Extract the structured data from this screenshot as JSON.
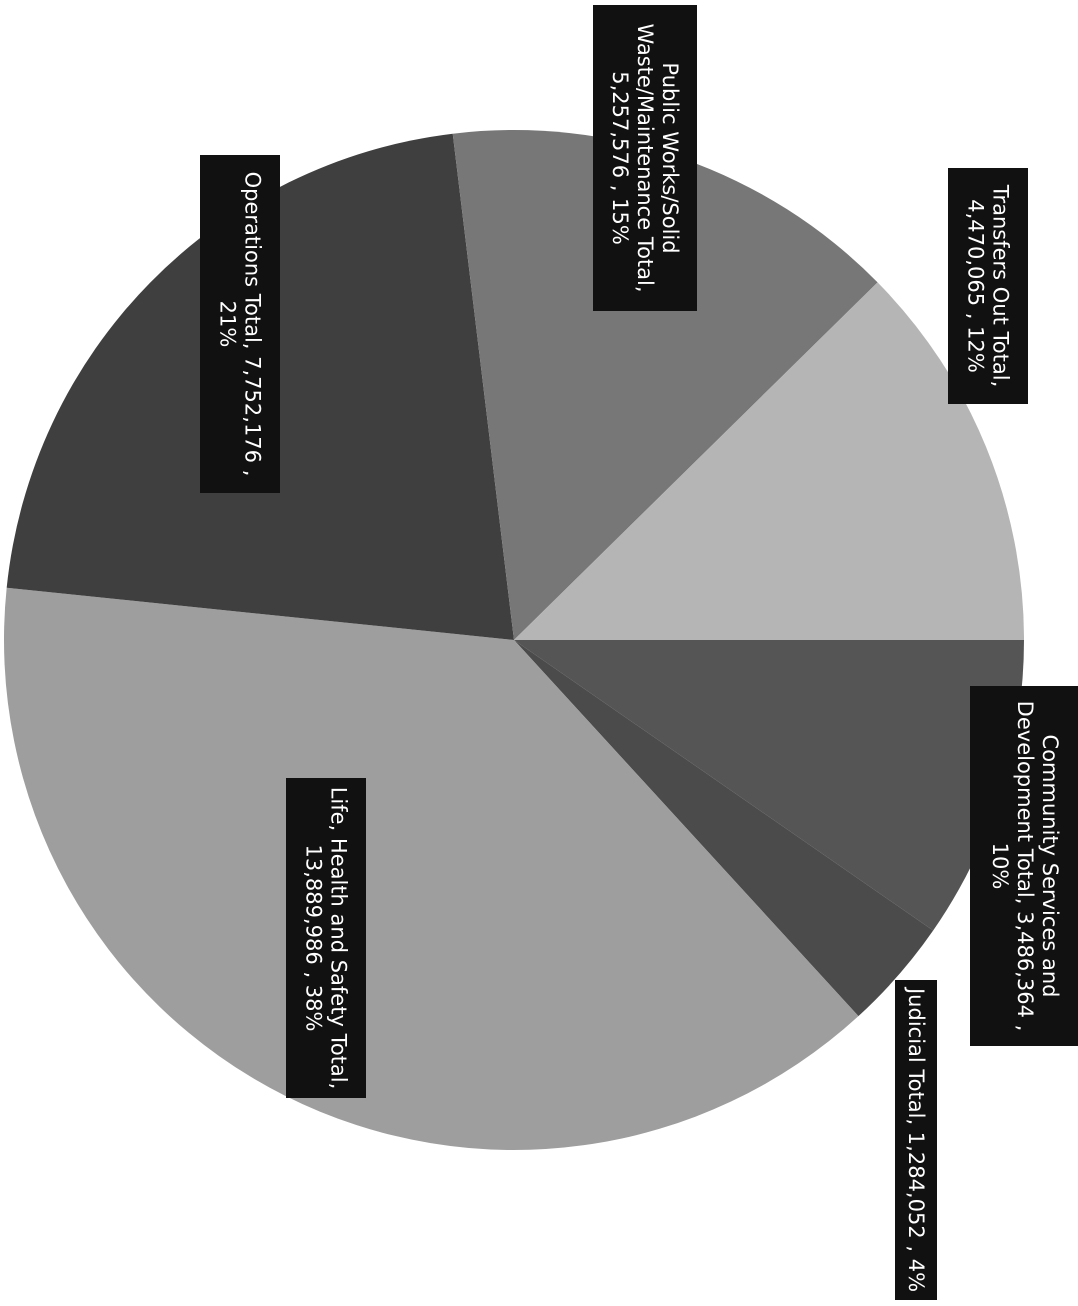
{
  "chart_data": {
    "type": "pie",
    "orientation": "rotated 90 degrees clockwise",
    "slices": [
      {
        "name": "Community Services and Development Total",
        "value": 3486364,
        "percent": 10,
        "color": "#555555",
        "label_lines": [
          "Community Services and",
          "Development Total,  3,486,364 ,",
          "10%"
        ]
      },
      {
        "name": "Judicial Total",
        "value": 1284052,
        "percent": 4,
        "color": "#4b4b4b",
        "label_lines": [
          "Judicial Total,  1,284,052 , 4%"
        ]
      },
      {
        "name": "Life, Health and Safety Total",
        "value": 13889986,
        "percent": 38,
        "color": "#9e9e9e",
        "label_lines": [
          "Life, Health and Safety Total,",
          "13,889,986 , 38%"
        ]
      },
      {
        "name": "Operations Total",
        "value": 7752176,
        "percent": 21,
        "color": "#3f3f3f",
        "label_lines": [
          "Operations Total,  7,752,176 ,",
          "21%"
        ]
      },
      {
        "name": "Public Works/Solid Waste/Maintenance Total",
        "value": 5257576,
        "percent": 15,
        "color": "#777777",
        "label_lines": [
          "Public Works/Solid",
          "Waste/Maintenance Total,",
          "5,257,576 , 15%"
        ]
      },
      {
        "name": "Transfers Out Total",
        "value": 4470065,
        "percent": 12,
        "color": "#b5b5b5",
        "label_lines": [
          "Transfers Out Total,",
          "4,470,065 , 12%"
        ]
      }
    ]
  }
}
